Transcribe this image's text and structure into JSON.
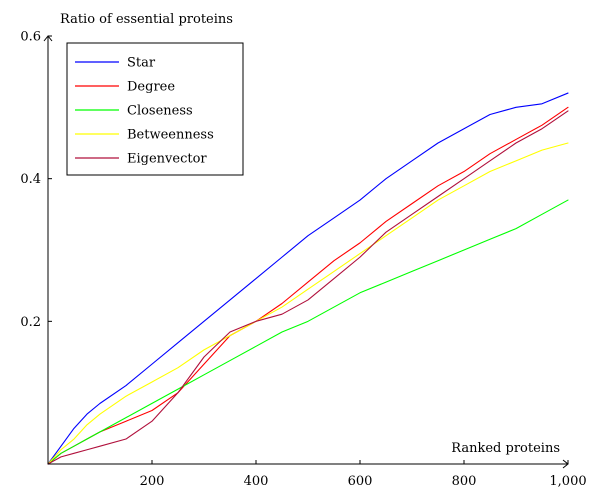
{
  "chart_data": {
    "type": "line",
    "xlabel": "Ranked proteins",
    "ylabel": "Ratio of essential proteins",
    "xlim": [
      0,
      1000
    ],
    "ylim": [
      0,
      0.6
    ],
    "x_ticks": [
      200,
      400,
      600,
      800,
      1000
    ],
    "x_tick_labels": [
      "200",
      "400",
      "600",
      "800",
      "1,000"
    ],
    "y_ticks": [
      0.2,
      0.4,
      0.6
    ],
    "y_tick_labels": [
      "0.2",
      "0.4",
      "0.6"
    ],
    "legend_position": "top-left",
    "grid": false,
    "series": [
      {
        "name": "Star",
        "color": "#0000ff",
        "x": [
          0,
          25,
          50,
          75,
          100,
          150,
          200,
          250,
          300,
          350,
          400,
          450,
          500,
          550,
          600,
          650,
          700,
          750,
          800,
          850,
          900,
          950,
          1000
        ],
        "y": [
          0,
          0.025,
          0.05,
          0.07,
          0.085,
          0.11,
          0.14,
          0.17,
          0.2,
          0.23,
          0.26,
          0.29,
          0.32,
          0.345,
          0.37,
          0.4,
          0.425,
          0.45,
          0.47,
          0.49,
          0.5,
          0.505,
          0.52
        ]
      },
      {
        "name": "Degree",
        "color": "#ff0000",
        "x": [
          0,
          25,
          50,
          75,
          100,
          150,
          200,
          250,
          300,
          350,
          400,
          450,
          500,
          550,
          600,
          650,
          700,
          750,
          800,
          850,
          900,
          950,
          1000
        ],
        "y": [
          0,
          0.015,
          0.025,
          0.035,
          0.045,
          0.06,
          0.075,
          0.1,
          0.14,
          0.18,
          0.2,
          0.225,
          0.255,
          0.285,
          0.31,
          0.34,
          0.365,
          0.39,
          0.41,
          0.435,
          0.455,
          0.475,
          0.5
        ]
      },
      {
        "name": "Closeness",
        "color": "#00ff00",
        "x": [
          0,
          25,
          50,
          75,
          100,
          150,
          200,
          250,
          300,
          350,
          400,
          450,
          500,
          550,
          600,
          650,
          700,
          750,
          800,
          850,
          900,
          950,
          1000
        ],
        "y": [
          0,
          0.015,
          0.025,
          0.035,
          0.045,
          0.065,
          0.085,
          0.105,
          0.125,
          0.145,
          0.165,
          0.185,
          0.2,
          0.22,
          0.24,
          0.255,
          0.27,
          0.285,
          0.3,
          0.315,
          0.33,
          0.35,
          0.37
        ]
      },
      {
        "name": "Betweenness",
        "color": "#ffff00",
        "x": [
          0,
          25,
          50,
          75,
          100,
          150,
          200,
          250,
          300,
          350,
          400,
          450,
          500,
          550,
          600,
          650,
          700,
          750,
          800,
          850,
          900,
          950,
          1000
        ],
        "y": [
          0,
          0.02,
          0.035,
          0.055,
          0.07,
          0.095,
          0.115,
          0.135,
          0.16,
          0.18,
          0.2,
          0.22,
          0.245,
          0.27,
          0.295,
          0.32,
          0.345,
          0.37,
          0.39,
          0.41,
          0.425,
          0.44,
          0.45
        ]
      },
      {
        "name": "Eigenvector",
        "color": "#b0103c",
        "x": [
          0,
          25,
          50,
          75,
          100,
          150,
          200,
          250,
          300,
          350,
          400,
          450,
          500,
          550,
          600,
          650,
          700,
          750,
          800,
          850,
          900,
          950,
          1000
        ],
        "y": [
          0,
          0.01,
          0.015,
          0.02,
          0.025,
          0.035,
          0.06,
          0.1,
          0.15,
          0.185,
          0.2,
          0.21,
          0.23,
          0.26,
          0.29,
          0.325,
          0.35,
          0.375,
          0.4,
          0.425,
          0.45,
          0.47,
          0.495
        ]
      }
    ]
  }
}
